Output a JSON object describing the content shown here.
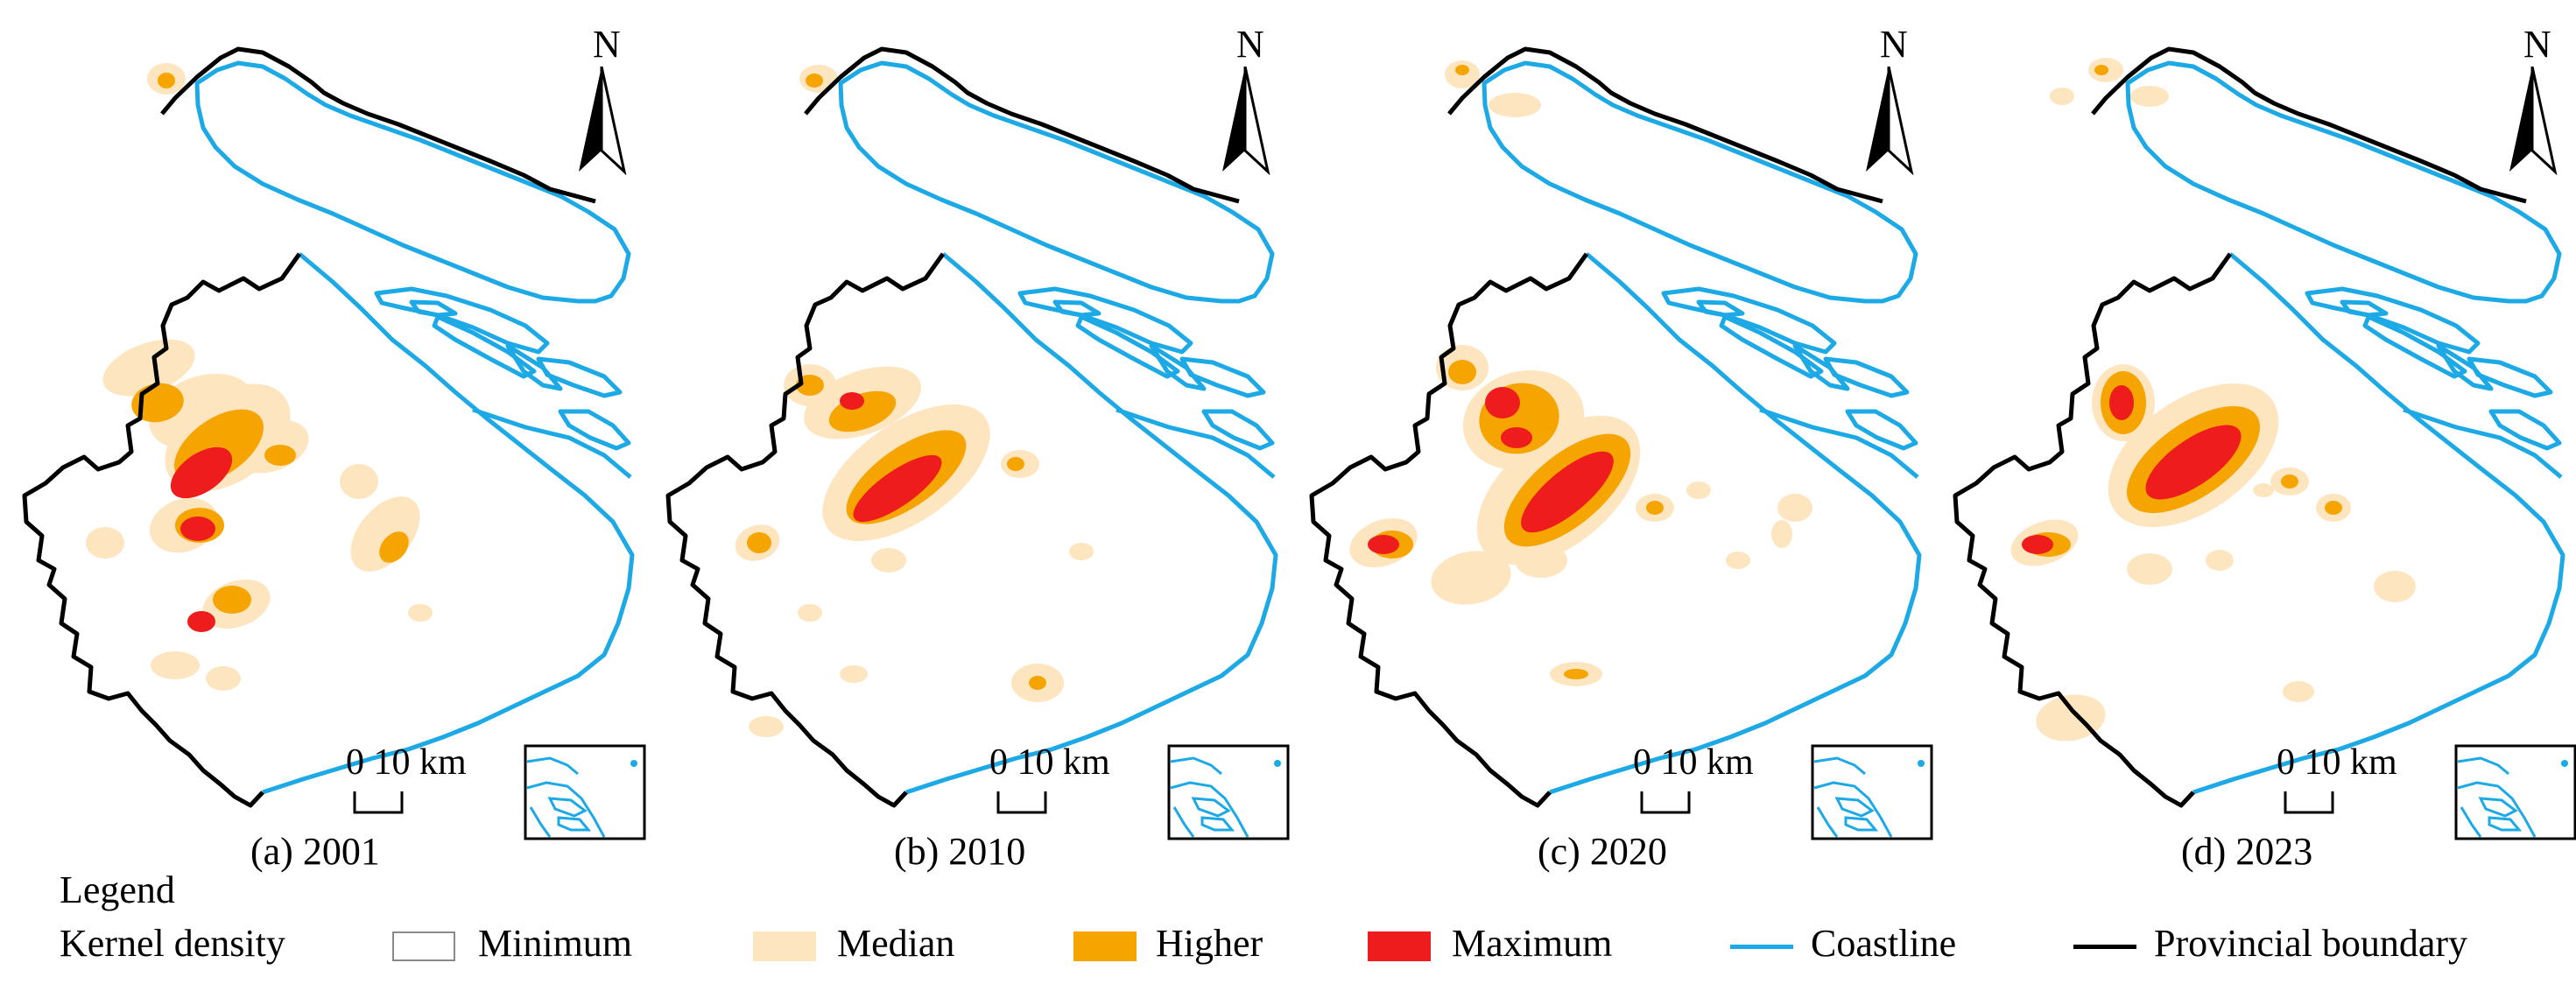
{
  "panels": [
    {
      "caption": "(a) 2001",
      "north": "N",
      "scale": "0 10 km"
    },
    {
      "caption": "(b) 2010",
      "north": "N",
      "scale": "0 10 km"
    },
    {
      "caption": "(c) 2020",
      "north": "N",
      "scale": "0 10 km"
    },
    {
      "caption": "(d) 2023",
      "north": "N",
      "scale": "0 10 km"
    }
  ],
  "legend": {
    "title": "Legend",
    "kernel_label": "Kernel density",
    "items": [
      {
        "label": "Minimum",
        "color": "#ffffff"
      },
      {
        "label": "Median",
        "color": "#fde5c0"
      },
      {
        "label": "Higher",
        "color": "#f6a500"
      },
      {
        "label": "Maximum",
        "color": "#ee1c1c"
      },
      {
        "label": "Coastline",
        "color": "#1ca9e6"
      },
      {
        "label": "Provincial boundary",
        "color": "#000000"
      }
    ]
  }
}
